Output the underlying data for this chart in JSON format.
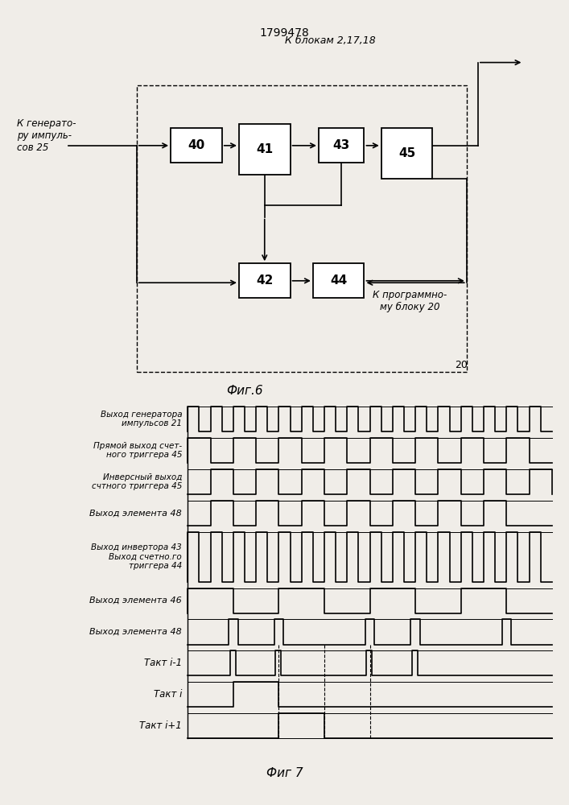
{
  "title": "1799478",
  "bg_color": "#f0ede8",
  "fig6_caption": "Фиг.6",
  "fig7_caption": "Фиг 7",
  "label_input": "К генерато-\nру импуль-\nсов 25",
  "label_blocks_out": "К блокам 2,17,18",
  "label_prog": "К программно-\nму блоку 20",
  "label_20": "20",
  "timing_row_labels": [
    "Выход генератора\nимпульсов 21",
    "Прямой выход счет-\nного триггера 45",
    "Инверсный выход\nсчтного триггера 45",
    "Выход элемента 48",
    "Выход инвертора 43\nВыход счетно.го\nтриггера 44",
    "Выход элемента 46",
    "Выход элемента 48",
    "Такт i-1",
    "Такт i",
    "Такт i+1"
  ],
  "timing_row_heights": [
    1,
    1,
    1,
    1,
    2,
    1,
    1,
    1,
    1,
    1
  ],
  "lw": 1.2,
  "block_lw": 1.3
}
